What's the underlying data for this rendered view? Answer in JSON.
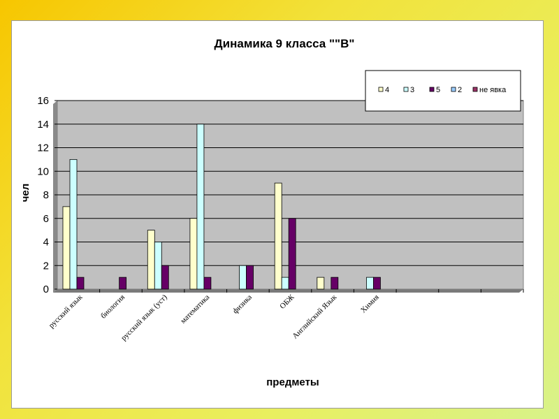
{
  "chart_data": {
    "type": "bar",
    "title": "Динамика 9 класса \"\"В\"",
    "xlabel": "предметы",
    "ylabel": "чел",
    "ylim": [
      0,
      16
    ],
    "yticks": [
      0,
      2,
      4,
      6,
      8,
      10,
      12,
      14,
      16
    ],
    "grid": true,
    "legend_position": "top-right",
    "categories": [
      "русский язык",
      "биология",
      "русский язык (уст)",
      "математика",
      "физика",
      "ОБЖ",
      "Английский Язык",
      "Химия"
    ],
    "series": [
      {
        "name": "4",
        "color": "#ffffcc",
        "values": [
          7,
          0,
          5,
          6,
          0,
          9,
          1,
          0
        ]
      },
      {
        "name": "3",
        "color": "#ccffff",
        "values": [
          11,
          0,
          4,
          14,
          2,
          1,
          0,
          1
        ]
      },
      {
        "name": "5",
        "color": "#660066",
        "values": [
          1,
          1,
          2,
          1,
          2,
          6,
          1,
          1
        ]
      },
      {
        "name": "2",
        "color": "#99ccff",
        "values": [
          0,
          0,
          0,
          0,
          0,
          0,
          0,
          0
        ]
      },
      {
        "name": "не явка",
        "color": "#993366",
        "values": [
          0,
          0,
          0,
          0,
          0,
          0,
          0,
          0
        ]
      }
    ],
    "plot_background": "#c0c0c0"
  }
}
